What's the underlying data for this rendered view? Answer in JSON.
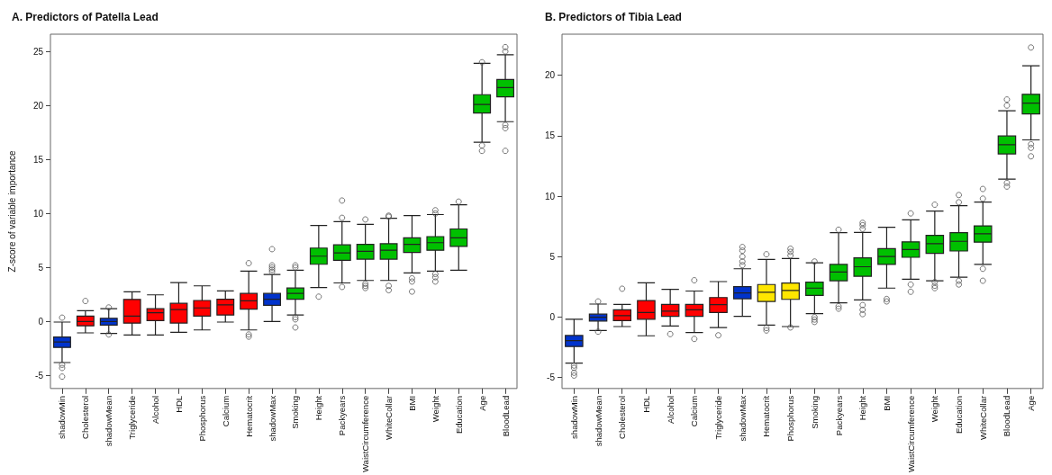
{
  "chart_data": [
    {
      "type": "box",
      "title": "A. Predictors of Patella Lead",
      "ylabel": "Z-score of variable importance",
      "categories": [
        "shadowMin",
        "Cholesterol",
        "shadowMean",
        "Triglyceride",
        "Alcohol",
        "HDL",
        "Phosphorus",
        "Calcium",
        "Hematocrit",
        "shadowMax",
        "Smoking",
        "Height",
        "Packyears",
        "WaistCircumference",
        "WhiteCollar",
        "BMI",
        "Weight",
        "Education",
        "Age",
        "BloodLead"
      ],
      "colors": [
        "#0033cc",
        "#ff0000",
        "#0033cc",
        "#ff0000",
        "#ff0000",
        "#ff0000",
        "#ff0000",
        "#ff0000",
        "#ff0000",
        "#0033cc",
        "#00c000",
        "#00c000",
        "#00c000",
        "#00c000",
        "#00c000",
        "#00c000",
        "#00c000",
        "#00c000",
        "#00c000",
        "#00c000"
      ],
      "boxes": [
        {
          "low": -3.8,
          "q1": -2.4,
          "median": -1.9,
          "q3": -1.43,
          "high": -0.05,
          "outliers": [
            -4.0,
            -4.3,
            -5.1,
            0.36
          ]
        },
        {
          "low": -1.05,
          "q1": -0.4,
          "median": 0,
          "q3": 0.5,
          "high": 1.0,
          "outliers": [
            1.9
          ]
        },
        {
          "low": -1.1,
          "q1": -0.33,
          "median": 0,
          "q3": 0.3,
          "high": 1.18,
          "outliers": [
            1.3,
            -1.2
          ]
        },
        {
          "low": -1.25,
          "q1": -0.15,
          "median": 0.5,
          "q3": 2.05,
          "high": 2.75
        },
        {
          "low": -1.25,
          "q1": 0.08,
          "median": 0.82,
          "q3": 1.18,
          "high": 2.47
        },
        {
          "low": -1.0,
          "q1": -0.14,
          "median": 1.1,
          "q3": 1.68,
          "high": 3.6
        },
        {
          "low": -0.78,
          "q1": 0.5,
          "median": 1.26,
          "q3": 1.95,
          "high": 3.3
        },
        {
          "low": -0.05,
          "q1": 0.6,
          "median": 1.54,
          "q3": 2.06,
          "high": 2.83
        },
        {
          "low": -0.78,
          "q1": 1.15,
          "median": 1.92,
          "q3": 2.6,
          "high": 4.67,
          "outliers": [
            5.4,
            -1.2,
            -1.4
          ]
        },
        {
          "low": 0,
          "q1": 1.5,
          "median": 2.06,
          "q3": 2.6,
          "high": 4.35,
          "outliers": [
            4.6,
            4.8,
            5.0,
            5.2,
            6.7
          ]
        },
        {
          "low": 0.6,
          "q1": 2.06,
          "median": 2.6,
          "q3": 3.1,
          "high": 4.75,
          "outliers": [
            5.0,
            5.2,
            0.4,
            0.2,
            -0.55
          ]
        },
        {
          "low": 3.15,
          "q1": 5.3,
          "median": 6.05,
          "q3": 6.8,
          "high": 8.9,
          "outliers": [
            2.3
          ]
        },
        {
          "low": 3.57,
          "q1": 5.67,
          "median": 6.35,
          "q3": 7.1,
          "high": 9.25,
          "outliers": [
            9.6,
            11.2,
            3.2
          ]
        },
        {
          "low": 3.8,
          "q1": 5.77,
          "median": 6.5,
          "q3": 7.15,
          "high": 9.0,
          "outliers": [
            9.45,
            3.5,
            3.3,
            3.1
          ]
        },
        {
          "low": 3.8,
          "q1": 5.77,
          "median": 6.6,
          "q3": 7.2,
          "high": 9.56,
          "outliers": [
            9.7,
            9.8,
            3.3,
            2.9
          ]
        },
        {
          "low": 4.5,
          "q1": 6.4,
          "median": 7.15,
          "q3": 7.75,
          "high": 9.8,
          "outliers": [
            4.0,
            3.7,
            2.77
          ]
        },
        {
          "low": 4.67,
          "q1": 6.6,
          "median": 7.3,
          "q3": 7.86,
          "high": 9.9,
          "outliers": [
            10.0,
            10.3,
            4.4,
            4.1,
            3.7
          ]
        },
        {
          "low": 4.75,
          "q1": 6.95,
          "median": 7.75,
          "q3": 8.57,
          "high": 10.8,
          "outliers": [
            11.1
          ]
        },
        {
          "low": 16.6,
          "q1": 19.3,
          "median": 20.1,
          "q3": 21.0,
          "high": 23.9,
          "outliers": [
            24.0,
            16.3,
            15.8
          ]
        },
        {
          "low": 18.5,
          "q1": 20.8,
          "median": 21.65,
          "q3": 22.4,
          "high": 24.7,
          "outliers": [
            25.0,
            25.4,
            18.2,
            17.9,
            15.8
          ]
        }
      ],
      "ylim": [
        -6.2,
        26.6
      ],
      "yticks": [
        -5,
        0,
        5,
        10,
        15,
        20,
        25
      ],
      "grid": false
    },
    {
      "type": "box",
      "title": "B. Predictors of Tibia Lead",
      "categories": [
        "shadowMin",
        "shadowMean",
        "Cholesterol",
        "HDL",
        "Alcohol",
        "Calcium",
        "Triglyceride",
        "shadowMax",
        "Hematocrit",
        "Phosphorus",
        "Smoking",
        "Packyears",
        "Height",
        "BMI",
        "WaistCircumference",
        "Weight",
        "Education",
        "WhiteCollar",
        "BloodLead",
        "Age"
      ],
      "colors": [
        "#0033cc",
        "#0033cc",
        "#ff0000",
        "#ff0000",
        "#ff0000",
        "#ff0000",
        "#ff0000",
        "#0033cc",
        "#ffe600",
        "#ffe600",
        "#00c000",
        "#00c000",
        "#00c000",
        "#00c000",
        "#00c000",
        "#00c000",
        "#00c000",
        "#00c000",
        "#00c000",
        "#00c000"
      ],
      "boxes": [
        {
          "low": -3.8,
          "q1": -2.43,
          "median": -1.94,
          "q3": -1.52,
          "high": -0.17,
          "outliers": [
            -4.0,
            -4.2,
            -4.6,
            -4.83
          ]
        },
        {
          "low": -1.1,
          "q1": -0.32,
          "median": 0,
          "q3": 0.25,
          "high": 1.08,
          "outliers": [
            1.3,
            -1.2
          ]
        },
        {
          "low": -0.78,
          "q1": -0.29,
          "median": 0.12,
          "q3": 0.61,
          "high": 1.05,
          "outliers": [
            2.35
          ]
        },
        {
          "low": -1.54,
          "q1": -0.17,
          "median": 0.39,
          "q3": 1.37,
          "high": 2.84
        },
        {
          "low": -0.73,
          "q1": 0.07,
          "median": 0.49,
          "q3": 1.05,
          "high": 2.3,
          "outliers": [
            -1.4
          ]
        },
        {
          "low": -1.27,
          "q1": 0.07,
          "median": 0.61,
          "q3": 1.05,
          "high": 2.16,
          "outliers": [
            3.05,
            -1.8
          ]
        },
        {
          "low": -0.86,
          "q1": 0.39,
          "median": 1.03,
          "q3": 1.62,
          "high": 2.94,
          "outliers": [
            -1.5
          ]
        },
        {
          "low": 0.07,
          "q1": 1.52,
          "median": 2.0,
          "q3": 2.52,
          "high": 4.0,
          "outliers": [
            4.3,
            4.6,
            5.0,
            5.5,
            5.8
          ]
        },
        {
          "low": -0.66,
          "q1": 1.3,
          "median": 2.06,
          "q3": 2.7,
          "high": 4.78,
          "outliers": [
            5.2,
            -0.9,
            -1.1
          ]
        },
        {
          "low": -0.78,
          "q1": 1.47,
          "median": 2.2,
          "q3": 2.82,
          "high": 4.85,
          "outliers": [
            5.1,
            5.4,
            5.66,
            -0.85
          ]
        },
        {
          "low": 0.29,
          "q1": 1.79,
          "median": 2.4,
          "q3": 2.9,
          "high": 4.49,
          "outliers": [
            4.6,
            0.0,
            -0.2,
            -0.4
          ]
        },
        {
          "low": 1.18,
          "q1": 3.01,
          "median": 3.73,
          "q3": 4.36,
          "high": 6.99,
          "outliers": [
            7.23,
            0.9,
            0.7
          ]
        },
        {
          "low": 1.42,
          "q1": 3.38,
          "median": 4.17,
          "q3": 4.9,
          "high": 7.0,
          "outliers": [
            7.3,
            7.6,
            7.8,
            1.0,
            0.6,
            0.25
          ]
        },
        {
          "low": 2.4,
          "q1": 4.36,
          "median": 5.02,
          "q3": 5.66,
          "high": 7.43,
          "outliers": [
            1.5,
            1.3
          ]
        },
        {
          "low": 3.14,
          "q1": 4.95,
          "median": 5.59,
          "q3": 6.23,
          "high": 8.04,
          "outliers": [
            8.58,
            2.7,
            2.1
          ]
        },
        {
          "low": 3.01,
          "q1": 5.27,
          "median": 6.08,
          "q3": 6.76,
          "high": 8.77,
          "outliers": [
            9.3,
            2.9,
            2.6,
            2.4
          ]
        },
        {
          "low": 3.31,
          "q1": 5.47,
          "median": 6.27,
          "q3": 6.99,
          "high": 9.22,
          "outliers": [
            9.5,
            10.1,
            3.0,
            2.7
          ]
        },
        {
          "low": 4.36,
          "q1": 6.2,
          "median": 6.89,
          "q3": 7.55,
          "high": 9.51,
          "outliers": [
            9.8,
            10.6,
            4.0,
            3.01
          ]
        },
        {
          "low": 11.42,
          "q1": 13.5,
          "median": 14.26,
          "q3": 14.98,
          "high": 17.06,
          "outliers": [
            17.5,
            18.0,
            11.1,
            10.8
          ]
        },
        {
          "low": 14.66,
          "q1": 16.81,
          "median": 17.7,
          "q3": 18.43,
          "high": 20.78,
          "outliers": [
            22.3,
            14.3,
            14.0,
            13.3
          ]
        }
      ],
      "ylim": [
        -5.9,
        23.4
      ],
      "yticks": [
        -5,
        0,
        5,
        10,
        15,
        20
      ],
      "grid": false
    }
  ]
}
